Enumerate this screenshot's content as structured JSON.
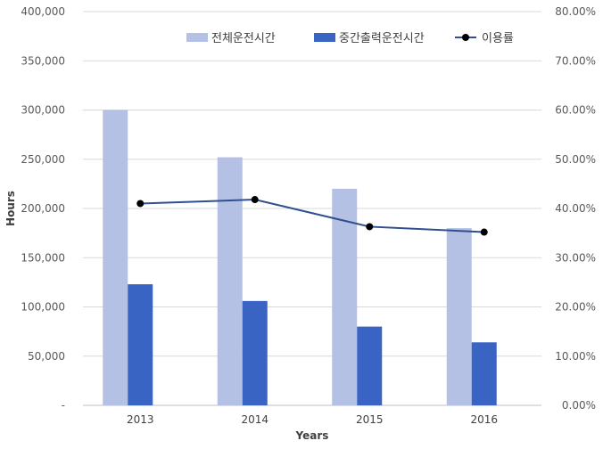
{
  "chart_data": {
    "type": "bar",
    "categories": [
      "2013",
      "2014",
      "2015",
      "2016"
    ],
    "series": [
      {
        "name": "전체운전시간",
        "kind": "bar",
        "axis": "left",
        "color": "#b4c0e4",
        "values": [
          300000,
          252000,
          220000,
          180000
        ]
      },
      {
        "name": "중간출력운전시간",
        "kind": "bar",
        "axis": "left",
        "color": "#3a64c3",
        "values": [
          123000,
          106000,
          80000,
          64000
        ]
      },
      {
        "name": "이용률",
        "kind": "line",
        "axis": "right",
        "color": "#2f4f8f",
        "marker_color": "#000000",
        "values": [
          41.0,
          41.8,
          36.3,
          35.2
        ]
      }
    ],
    "xlabel": "Years",
    "ylabel": "Hours",
    "ylim": [
      0,
      400000
    ],
    "y2lim": [
      0,
      80
    ],
    "y_ticks": [
      "-",
      "50,000",
      "100,000",
      "150,000",
      "200,000",
      "250,000",
      "300,000",
      "350,000",
      "400,000"
    ],
    "y2_ticks": [
      "0.00%",
      "10.00%",
      "20.00%",
      "30.00%",
      "40.00%",
      "50.00%",
      "60.00%",
      "70.00%",
      "80.00%"
    ],
    "grid": true,
    "legend": "top-right"
  }
}
